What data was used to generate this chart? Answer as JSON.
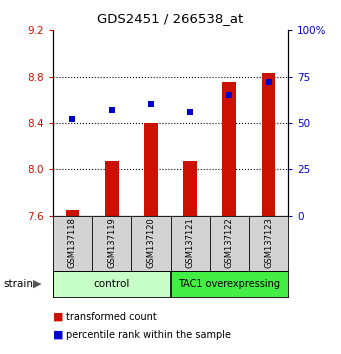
{
  "title": "GDS2451 / 266538_at",
  "samples": [
    "GSM137118",
    "GSM137119",
    "GSM137120",
    "GSM137121",
    "GSM137122",
    "GSM137123"
  ],
  "transformed_counts": [
    7.65,
    8.07,
    8.4,
    8.07,
    8.75,
    8.83
  ],
  "percentile_ranks": [
    52,
    57,
    60,
    56,
    65,
    72
  ],
  "bar_base": 7.6,
  "ylim_left": [
    7.6,
    9.2
  ],
  "ylim_right": [
    0,
    100
  ],
  "yticks_left": [
    7.6,
    8.0,
    8.4,
    8.8,
    9.2
  ],
  "yticks_right": [
    0,
    25,
    50,
    75,
    100
  ],
  "ytick_right_labels": [
    "0",
    "25",
    "50",
    "75",
    "100%"
  ],
  "bar_color": "#cc1100",
  "dot_color": "#0000cc",
  "tick_color_left": "#cc1100",
  "tick_color_right": "#0000cc",
  "bar_width": 0.35,
  "ctrl_color": "#c8ffc8",
  "tac1_color": "#44ee44",
  "gray_bg": "#d3d3d3",
  "legend_labels": [
    "transformed count",
    "percentile rank within the sample"
  ],
  "gridlines": [
    8.0,
    8.4,
    8.8
  ]
}
